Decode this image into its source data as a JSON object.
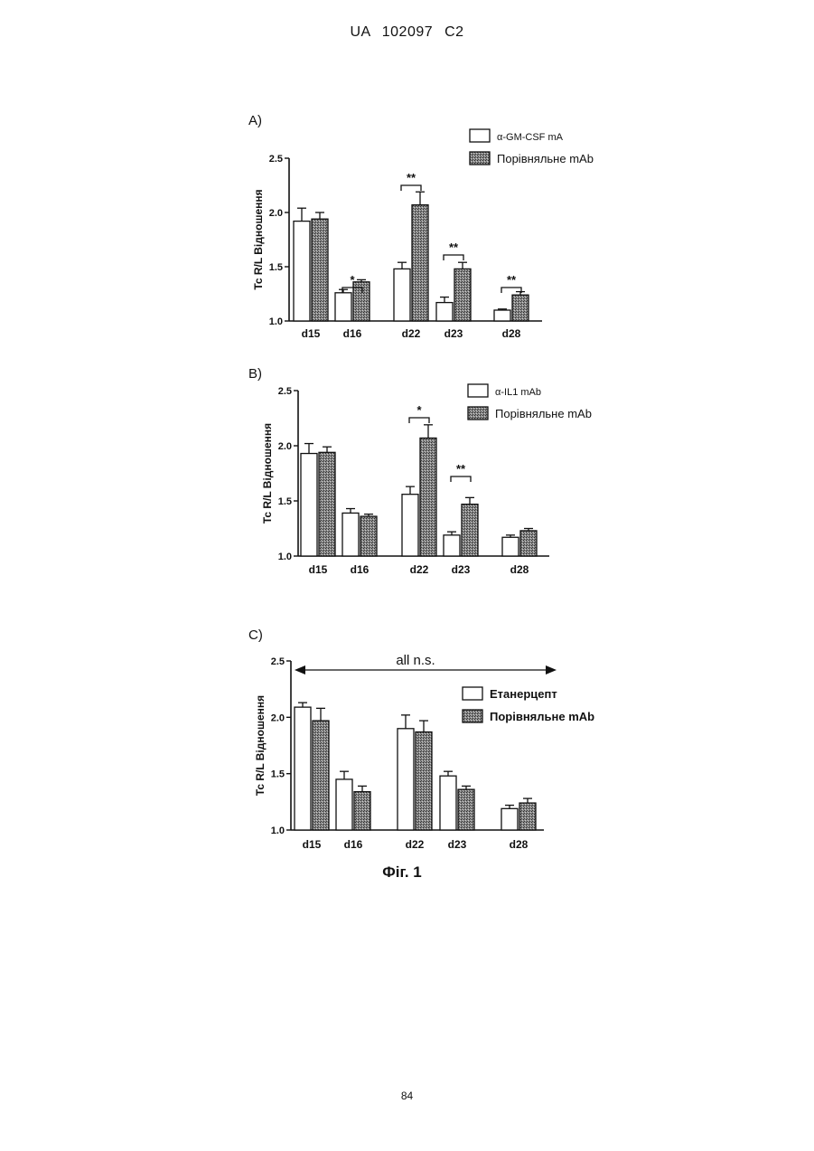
{
  "header": "UA 102097 C2",
  "page_number": "84",
  "figure_caption": "Фіг. 1",
  "chart_data": [
    {
      "type": "bar",
      "panel_label": "A)",
      "title": "",
      "xlabel": "",
      "ylabel": "Tc R/L Відношення",
      "ylim": [
        1.0,
        2.5
      ],
      "yticks": [
        "1.0",
        "1.5",
        "2.0",
        "2.5"
      ],
      "categories": [
        "d15",
        "d16",
        "d22",
        "d23",
        "d28"
      ],
      "series": [
        {
          "name": "α-GM-CSF mA",
          "fill": "white",
          "values": [
            1.92,
            1.26,
            1.48,
            1.17,
            1.1
          ],
          "errors": [
            0.12,
            0.03,
            0.06,
            0.05,
            0.01
          ]
        },
        {
          "name": "Порівняльне mAb",
          "fill": "hatched",
          "values": [
            1.94,
            1.36,
            2.07,
            1.48,
            1.24
          ],
          "errors": [
            0.06,
            0.02,
            0.12,
            0.06,
            0.03
          ]
        }
      ],
      "significance": [
        {
          "category": "d16",
          "label": "*"
        },
        {
          "category": "d22",
          "label": "**"
        },
        {
          "category": "d23",
          "label": "**"
        },
        {
          "category": "d28",
          "label": "**"
        }
      ],
      "legend_position": "top-right"
    },
    {
      "type": "bar",
      "panel_label": "B)",
      "title": "",
      "xlabel": "",
      "ylabel": "Tc R/L Відношення",
      "ylim": [
        1.0,
        2.5
      ],
      "yticks": [
        "1.0",
        "1.5",
        "2.0",
        "2.5"
      ],
      "categories": [
        "d15",
        "d16",
        "d22",
        "d23",
        "d28"
      ],
      "series": [
        {
          "name": "α-IL1 mAb",
          "fill": "white",
          "values": [
            1.93,
            1.39,
            1.56,
            1.19,
            1.17
          ],
          "errors": [
            0.09,
            0.04,
            0.07,
            0.03,
            0.02
          ]
        },
        {
          "name": "Порівняльне mAb",
          "fill": "hatched",
          "values": [
            1.94,
            1.36,
            2.07,
            1.47,
            1.23
          ],
          "errors": [
            0.05,
            0.02,
            0.12,
            0.06,
            0.02
          ]
        }
      ],
      "significance": [
        {
          "category": "d22",
          "label": "*"
        },
        {
          "category": "d23",
          "label": "**"
        }
      ],
      "legend_position": "top-right"
    },
    {
      "type": "bar",
      "panel_label": "C)",
      "title": "",
      "xlabel": "",
      "ylabel": "Tc R/L Відношення",
      "ylim": [
        1.0,
        2.5
      ],
      "yticks": [
        "1.0",
        "1.5",
        "2.0",
        "2.5"
      ],
      "categories": [
        "d15",
        "d16",
        "d22",
        "d23",
        "d28"
      ],
      "series": [
        {
          "name": "Етанерцепт",
          "fill": "white",
          "values": [
            2.09,
            1.45,
            1.9,
            1.48,
            1.19
          ],
          "errors": [
            0.04,
            0.07,
            0.12,
            0.04,
            0.03
          ]
        },
        {
          "name": "Порівняльне mAb",
          "fill": "hatched",
          "values": [
            1.97,
            1.34,
            1.87,
            1.36,
            1.24
          ],
          "errors": [
            0.11,
            0.05,
            0.1,
            0.03,
            0.04
          ]
        }
      ],
      "annotation": "all n.s.",
      "legend_position": "top-right"
    }
  ]
}
